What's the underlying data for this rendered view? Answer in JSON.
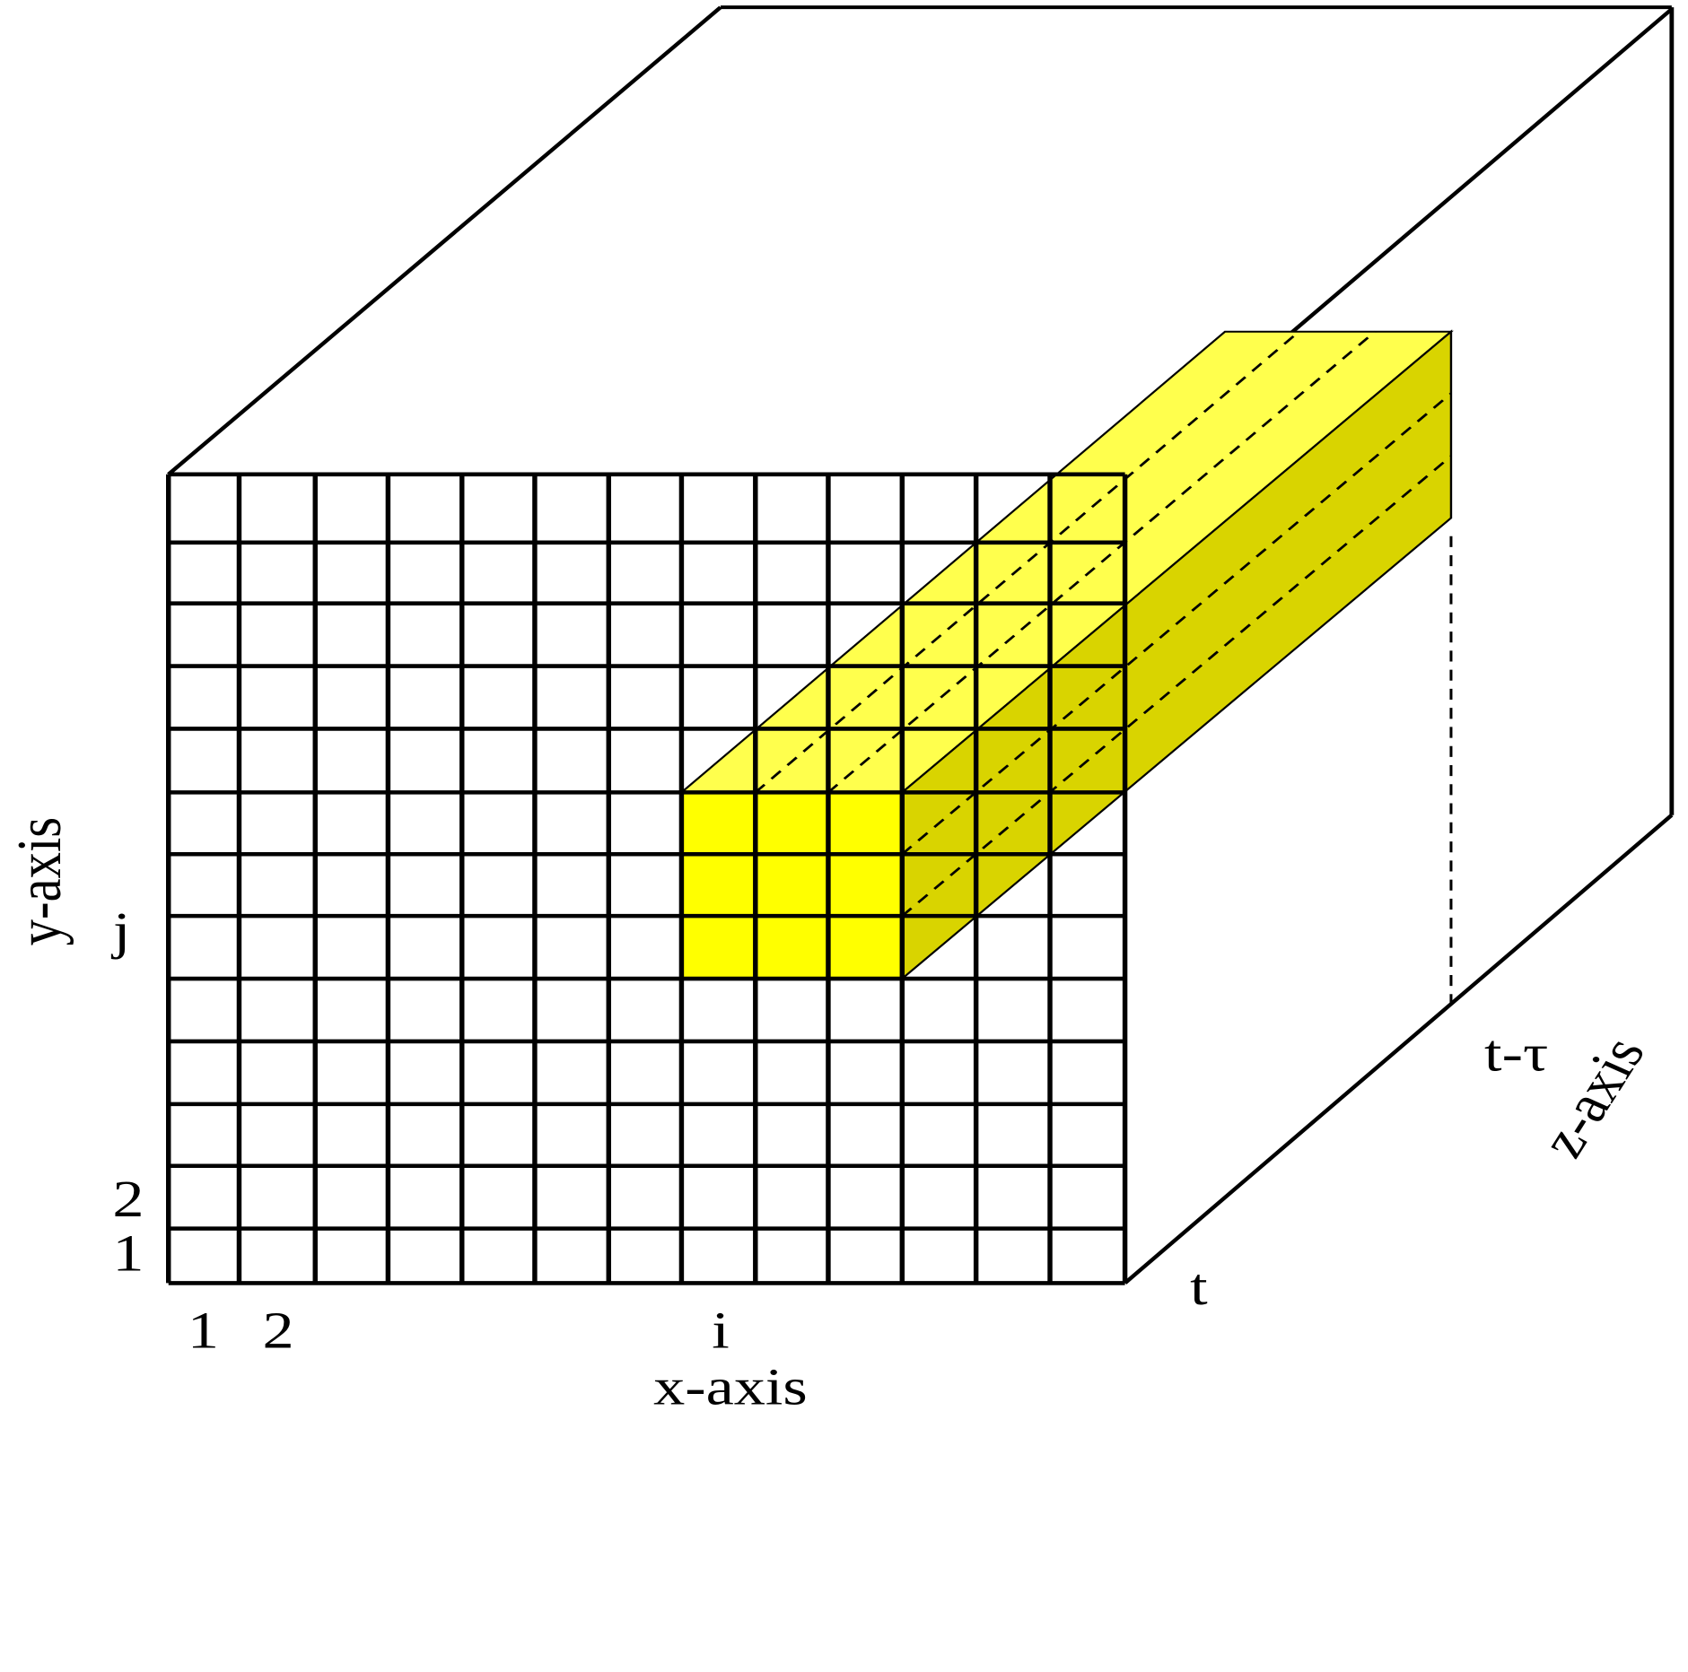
{
  "labels": {
    "y_axis": "y-axis",
    "j": "j",
    "y2": "2",
    "y1": "1",
    "x1": "1",
    "x2": "2",
    "i": "i",
    "x_axis": "x-axis",
    "t": "t",
    "t_tau": "t-τ",
    "z_axis": "z-axis"
  }
}
